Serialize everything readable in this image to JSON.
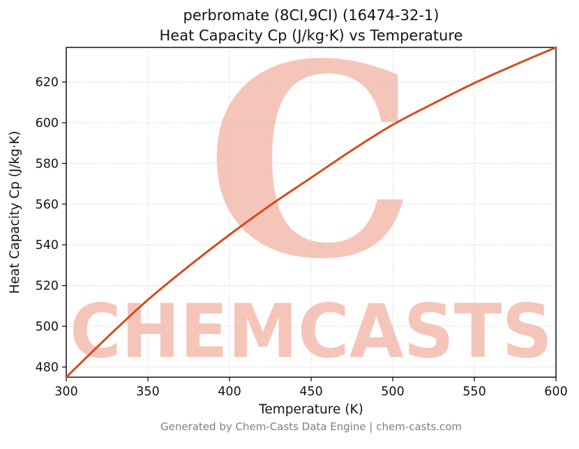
{
  "title": {
    "line1": "perbromate (8CI,9CI) (16474-32-1)",
    "line2": "Heat Capacity Cp (J/kg·K) vs Temperature"
  },
  "footer": "Generated by Chem-Casts Data Engine | chem-casts.com",
  "watermark": {
    "logo_glyph": "C",
    "text": "CHEMCASTS",
    "color": "#e8765c",
    "opacity": 0.42
  },
  "chart_data": {
    "type": "line",
    "title": "perbromate (8CI,9CI) (16474-32-1) — Heat Capacity Cp (J/kg·K) vs Temperature",
    "xlabel": "Temperature (K)",
    "ylabel": "Heat Capacity Cp (J/kg·K)",
    "xlim": [
      300,
      600
    ],
    "ylim": [
      475,
      637
    ],
    "xticks": [
      300,
      350,
      400,
      450,
      500,
      550,
      600
    ],
    "yticks": [
      480,
      500,
      520,
      540,
      560,
      580,
      600,
      620
    ],
    "grid": true,
    "grid_style": "dotted",
    "legend": false,
    "line_color": "#d94a1a",
    "line_width": 3,
    "series": [
      {
        "name": "Heat Capacity Cp",
        "x": [
          300,
          325,
          350,
          375,
          400,
          425,
          450,
          475,
          500,
          525,
          550,
          575,
          600
        ],
        "y": [
          475,
          494.5,
          513,
          529.5,
          545,
          559.5,
          573,
          586.5,
          599,
          609.5,
          619.5,
          628.5,
          637
        ]
      }
    ]
  }
}
